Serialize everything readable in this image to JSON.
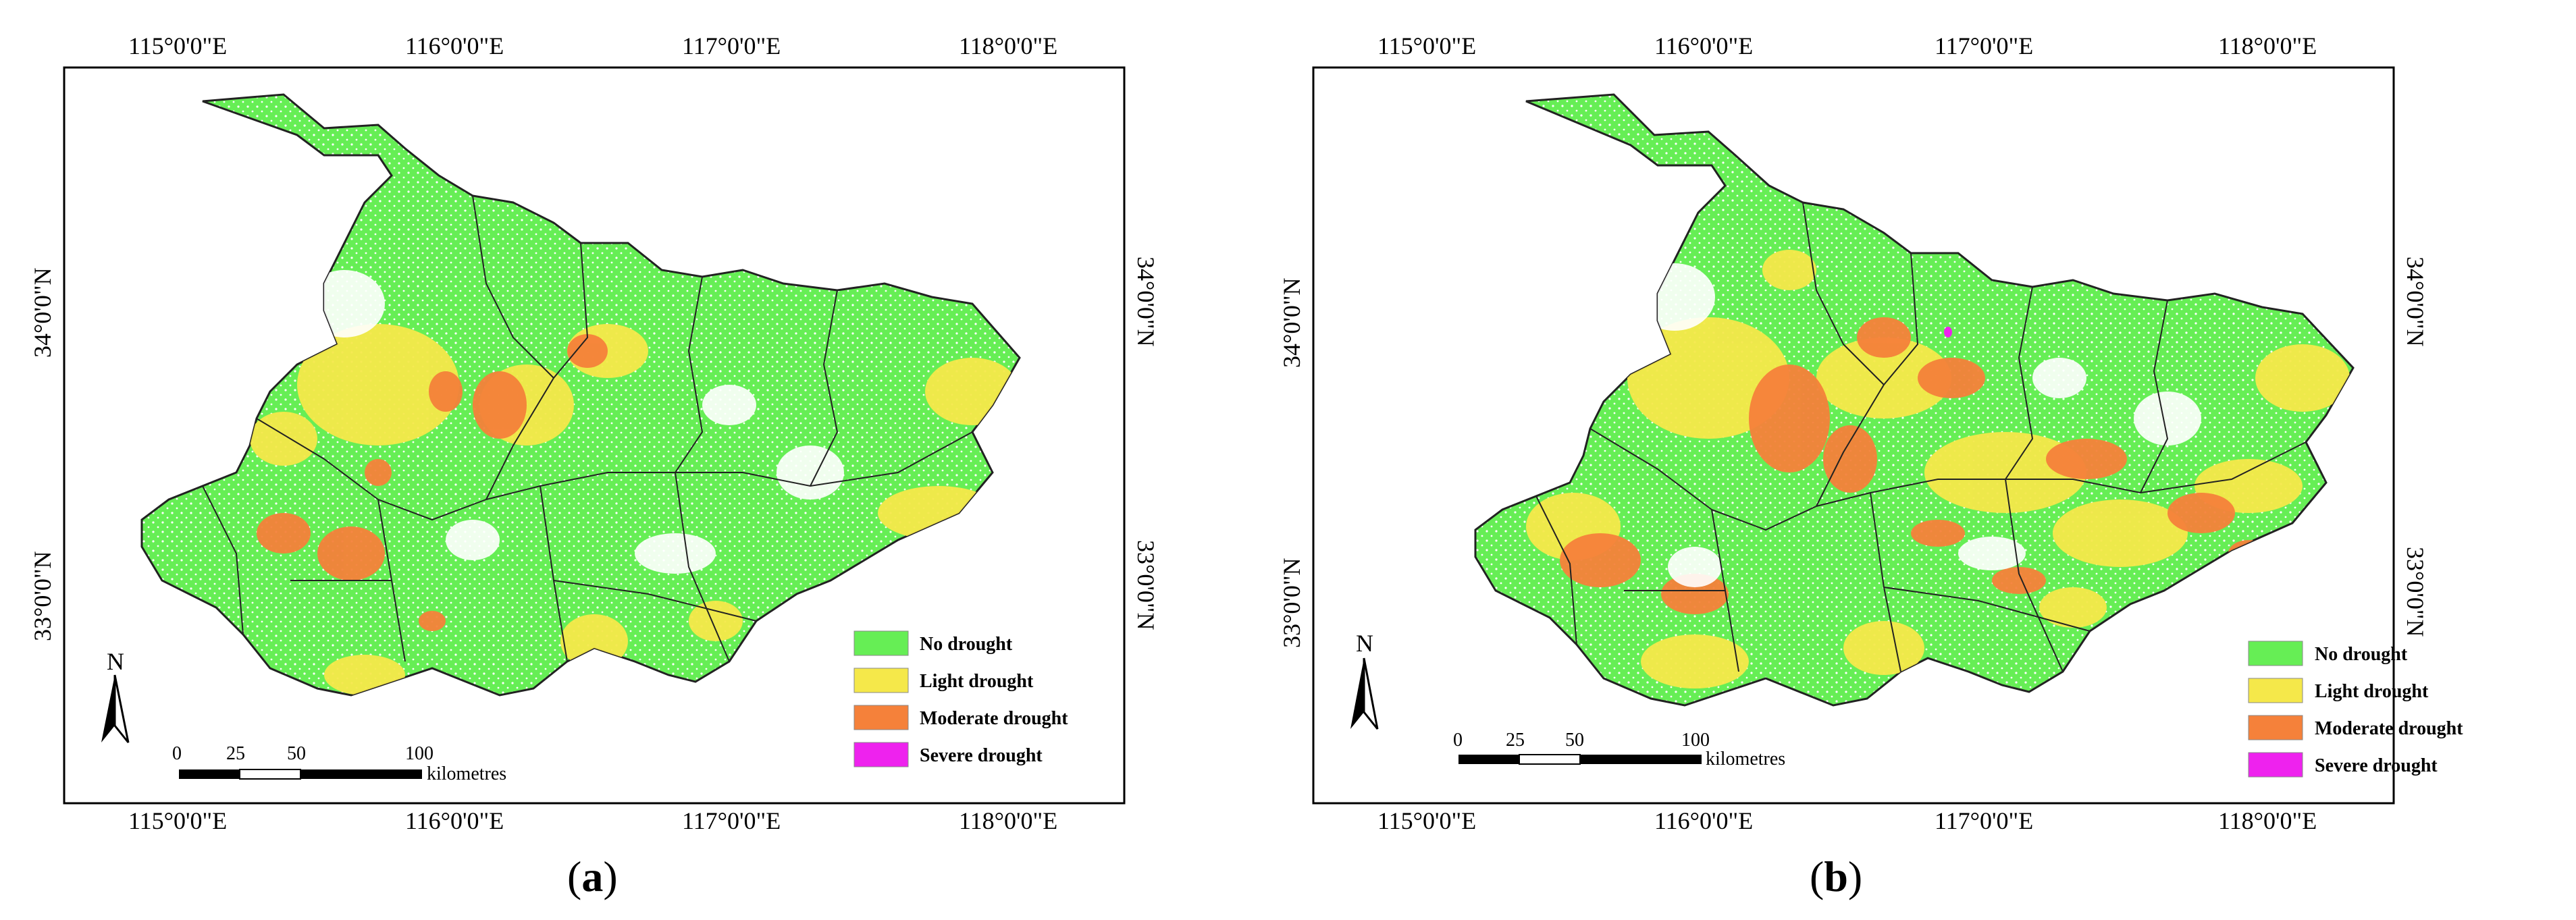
{
  "panels": [
    {
      "id": "a",
      "caption_letter": "a",
      "top_lon_labels": [
        "115°0'0\"E",
        "116°0'0\"E",
        "117°0'0\"E",
        "118°0'0\"E"
      ],
      "bottom_lon_labels": [
        "115°0'0\"E",
        "116°0'0\"E",
        "117°0'0\"E",
        "118°0'0\"E"
      ],
      "left_lat_labels": [
        "34°0'0\"N",
        "33°0'0\"N"
      ],
      "right_lat_labels": [
        "34°0'0\"N",
        "33°0'0\"N"
      ],
      "north_label": "N",
      "scale_ticks": [
        "0",
        "25",
        "50",
        "100"
      ],
      "scale_unit": "kilometres",
      "legend": [
        {
          "label": "No drought",
          "color": "#66ee55"
        },
        {
          "label": "Light drought",
          "color": "#f5e84a"
        },
        {
          "label": "Moderate drought",
          "color": "#f5813a"
        },
        {
          "label": "Severe drought",
          "color": "#ee22ee"
        }
      ]
    },
    {
      "id": "b",
      "caption_letter": "b",
      "top_lon_labels": [
        "115°0'0\"E",
        "116°0'0\"E",
        "117°0'0\"E",
        "118°0'0\"E"
      ],
      "bottom_lon_labels": [
        "115°0'0\"E",
        "116°0'0\"E",
        "117°0'0\"E",
        "118°0'0\"E"
      ],
      "left_lat_labels": [
        "34°0'0\"N",
        "33°0'0\"N"
      ],
      "right_lat_labels": [
        "34°0'0\"N",
        "33°0'0\"N"
      ],
      "north_label": "N",
      "scale_ticks": [
        "0",
        "25",
        "50",
        "100"
      ],
      "scale_unit": "kilometres",
      "legend": [
        {
          "label": "No drought",
          "color": "#66ee55"
        },
        {
          "label": "Light drought",
          "color": "#f5e84a"
        },
        {
          "label": "Moderate drought",
          "color": "#f5813a"
        },
        {
          "label": "Severe drought",
          "color": "#ee22ee"
        }
      ]
    }
  ],
  "caption_paren_open": "(",
  "caption_paren_close": ")"
}
